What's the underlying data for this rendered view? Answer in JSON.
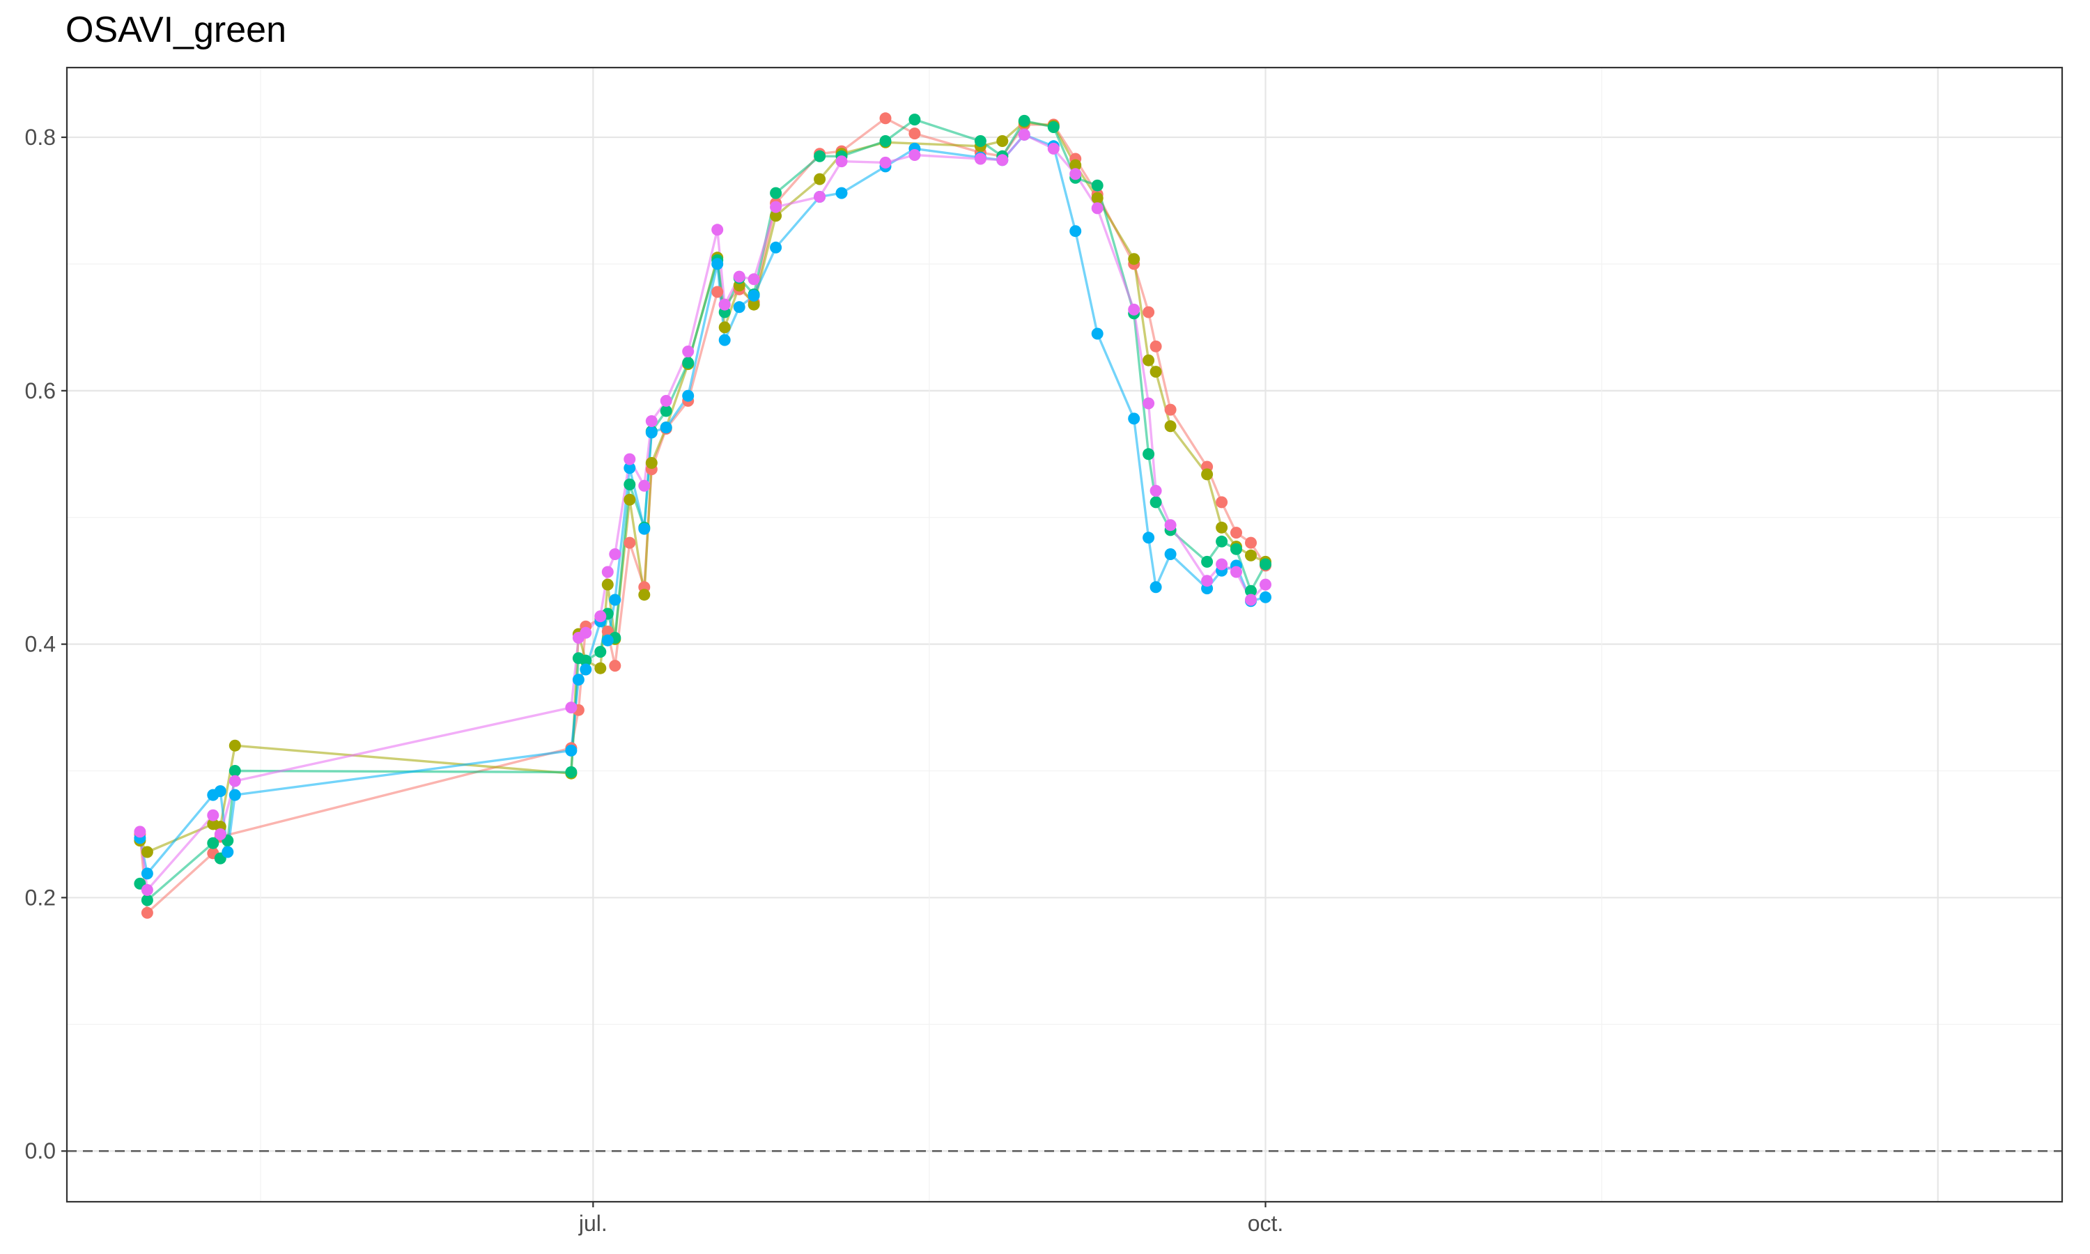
{
  "chart_data": {
    "type": "line",
    "title": "OSAVI_green",
    "xlabel": "",
    "ylabel": "",
    "x_tick_labels": [
      "jul.",
      "oct."
    ],
    "y_tick_labels": [
      "0.0",
      "0.2",
      "0.4",
      "0.6",
      "0.8"
    ],
    "ylim": [
      -0.04,
      0.855
    ],
    "xlim": [
      "2021-04-20",
      "2022-01-18"
    ],
    "grid": true,
    "reference_line": {
      "y": 0,
      "style": "dashed"
    },
    "legend": "none",
    "series": [
      {
        "color": "#F8766D",
        "points": [
          [
            "2021-04-30",
            0.25
          ],
          [
            "2021-05-01",
            0.188
          ],
          [
            "2021-05-10",
            0.235
          ],
          [
            "2021-05-11",
            0.248
          ],
          [
            "2021-06-28",
            0.318
          ],
          [
            "2021-06-29",
            0.348
          ],
          [
            "2021-06-30",
            0.414
          ],
          [
            "2021-07-02",
            0.42
          ],
          [
            "2021-07-03",
            0.41
          ],
          [
            "2021-07-04",
            0.383
          ],
          [
            "2021-07-06",
            0.48
          ],
          [
            "2021-07-08",
            0.445
          ],
          [
            "2021-07-09",
            0.538
          ],
          [
            "2021-07-11",
            0.57
          ],
          [
            "2021-07-14",
            0.592
          ],
          [
            "2021-07-18",
            0.678
          ],
          [
            "2021-07-19",
            0.668
          ],
          [
            "2021-07-21",
            0.68
          ],
          [
            "2021-07-23",
            0.67
          ],
          [
            "2021-07-26",
            0.748
          ],
          [
            "2021-08-01",
            0.787
          ],
          [
            "2021-08-04",
            0.789
          ],
          [
            "2021-08-10",
            0.815
          ],
          [
            "2021-08-14",
            0.803
          ],
          [
            "2021-08-23",
            0.788
          ],
          [
            "2021-08-26",
            0.785
          ],
          [
            "2021-08-29",
            0.81
          ],
          [
            "2021-09-02",
            0.81
          ],
          [
            "2021-09-05",
            0.783
          ],
          [
            "2021-09-08",
            0.755
          ],
          [
            "2021-09-13",
            0.7
          ],
          [
            "2021-09-15",
            0.662
          ],
          [
            "2021-09-16",
            0.635
          ],
          [
            "2021-09-18",
            0.585
          ],
          [
            "2021-09-23",
            0.54
          ],
          [
            "2021-09-25",
            0.512
          ],
          [
            "2021-09-27",
            0.488
          ],
          [
            "2021-09-29",
            0.48
          ],
          [
            "2021-10-01",
            0.462
          ]
        ]
      },
      {
        "color": "#A3A500",
        "points": [
          [
            "2021-04-30",
            0.245
          ],
          [
            "2021-05-01",
            0.236
          ],
          [
            "2021-05-10",
            0.258
          ],
          [
            "2021-05-11",
            0.256
          ],
          [
            "2021-05-13",
            0.32
          ],
          [
            "2021-06-28",
            0.298
          ],
          [
            "2021-06-29",
            0.408
          ],
          [
            "2021-06-30",
            0.387
          ],
          [
            "2021-07-02",
            0.381
          ],
          [
            "2021-07-03",
            0.447
          ],
          [
            "2021-07-04",
            0.404
          ],
          [
            "2021-07-06",
            0.514
          ],
          [
            "2021-07-08",
            0.439
          ],
          [
            "2021-07-09",
            0.543
          ],
          [
            "2021-07-11",
            0.571
          ],
          [
            "2021-07-14",
            0.621
          ],
          [
            "2021-07-18",
            0.705
          ],
          [
            "2021-07-19",
            0.65
          ],
          [
            "2021-07-21",
            0.683
          ],
          [
            "2021-07-23",
            0.668
          ],
          [
            "2021-07-26",
            0.738
          ],
          [
            "2021-08-01",
            0.767
          ],
          [
            "2021-08-04",
            0.787
          ],
          [
            "2021-08-10",
            0.796
          ],
          [
            "2021-08-23",
            0.793
          ],
          [
            "2021-08-26",
            0.797
          ],
          [
            "2021-08-29",
            0.812
          ],
          [
            "2021-09-02",
            0.809
          ],
          [
            "2021-09-05",
            0.778
          ],
          [
            "2021-09-08",
            0.752
          ],
          [
            "2021-09-13",
            0.704
          ],
          [
            "2021-09-15",
            0.624
          ],
          [
            "2021-09-16",
            0.615
          ],
          [
            "2021-09-18",
            0.572
          ],
          [
            "2021-09-23",
            0.534
          ],
          [
            "2021-09-25",
            0.492
          ],
          [
            "2021-09-27",
            0.477
          ],
          [
            "2021-09-29",
            0.47
          ],
          [
            "2021-10-01",
            0.465
          ]
        ]
      },
      {
        "color": "#00BF7D",
        "points": [
          [
            "2021-04-30",
            0.211
          ],
          [
            "2021-05-01",
            0.198
          ],
          [
            "2021-05-10",
            0.243
          ],
          [
            "2021-05-11",
            0.231
          ],
          [
            "2021-05-12",
            0.245
          ],
          [
            "2021-05-13",
            0.3
          ],
          [
            "2021-06-28",
            0.299
          ],
          [
            "2021-06-29",
            0.389
          ],
          [
            "2021-06-30",
            0.387
          ],
          [
            "2021-07-02",
            0.394
          ],
          [
            "2021-07-03",
            0.424
          ],
          [
            "2021-07-04",
            0.405
          ],
          [
            "2021-07-06",
            0.526
          ],
          [
            "2021-07-08",
            0.492
          ],
          [
            "2021-07-09",
            0.568
          ],
          [
            "2021-07-11",
            0.584
          ],
          [
            "2021-07-14",
            0.622
          ],
          [
            "2021-07-18",
            0.703
          ],
          [
            "2021-07-19",
            0.662
          ],
          [
            "2021-07-21",
            0.689
          ],
          [
            "2021-07-23",
            0.676
          ],
          [
            "2021-07-26",
            0.756
          ],
          [
            "2021-08-01",
            0.785
          ],
          [
            "2021-08-04",
            0.785
          ],
          [
            "2021-08-10",
            0.797
          ],
          [
            "2021-08-14",
            0.814
          ],
          [
            "2021-08-23",
            0.797
          ],
          [
            "2021-08-26",
            0.785
          ],
          [
            "2021-08-29",
            0.813
          ],
          [
            "2021-09-02",
            0.808
          ],
          [
            "2021-09-05",
            0.768
          ],
          [
            "2021-09-08",
            0.762
          ],
          [
            "2021-09-13",
            0.661
          ],
          [
            "2021-09-15",
            0.55
          ],
          [
            "2021-09-16",
            0.512
          ],
          [
            "2021-09-18",
            0.49
          ],
          [
            "2021-09-23",
            0.465
          ],
          [
            "2021-09-25",
            0.481
          ],
          [
            "2021-09-27",
            0.475
          ],
          [
            "2021-09-29",
            0.442
          ],
          [
            "2021-10-01",
            0.463
          ]
        ]
      },
      {
        "color": "#00B0F6",
        "points": [
          [
            "2021-04-30",
            0.247
          ],
          [
            "2021-05-01",
            0.219
          ],
          [
            "2021-05-10",
            0.281
          ],
          [
            "2021-05-11",
            0.284
          ],
          [
            "2021-05-12",
            0.236
          ],
          [
            "2021-05-13",
            0.281
          ],
          [
            "2021-06-28",
            0.316
          ],
          [
            "2021-06-29",
            0.372
          ],
          [
            "2021-06-30",
            0.38
          ],
          [
            "2021-07-02",
            0.418
          ],
          [
            "2021-07-03",
            0.403
          ],
          [
            "2021-07-04",
            0.435
          ],
          [
            "2021-07-06",
            0.539
          ],
          [
            "2021-07-08",
            0.491
          ],
          [
            "2021-07-09",
            0.567
          ],
          [
            "2021-07-11",
            0.571
          ],
          [
            "2021-07-14",
            0.596
          ],
          [
            "2021-07-18",
            0.7
          ],
          [
            "2021-07-19",
            0.64
          ],
          [
            "2021-07-21",
            0.666
          ],
          [
            "2021-07-23",
            0.675
          ],
          [
            "2021-07-26",
            0.713
          ],
          [
            "2021-08-01",
            0.753
          ],
          [
            "2021-08-04",
            0.756
          ],
          [
            "2021-08-10",
            0.777
          ],
          [
            "2021-08-14",
            0.791
          ],
          [
            "2021-08-23",
            0.784
          ],
          [
            "2021-08-26",
            0.782
          ],
          [
            "2021-08-29",
            0.802
          ],
          [
            "2021-09-02",
            0.793
          ],
          [
            "2021-09-05",
            0.726
          ],
          [
            "2021-09-08",
            0.645
          ],
          [
            "2021-09-13",
            0.578
          ],
          [
            "2021-09-15",
            0.484
          ],
          [
            "2021-09-16",
            0.445
          ],
          [
            "2021-09-18",
            0.471
          ],
          [
            "2021-09-23",
            0.444
          ],
          [
            "2021-09-25",
            0.458
          ],
          [
            "2021-09-27",
            0.462
          ],
          [
            "2021-09-29",
            0.434
          ],
          [
            "2021-10-01",
            0.437
          ]
        ]
      },
      {
        "color": "#E76BF3",
        "points": [
          [
            "2021-04-30",
            0.252
          ],
          [
            "2021-05-01",
            0.206
          ],
          [
            "2021-05-10",
            0.265
          ],
          [
            "2021-05-11",
            0.25
          ],
          [
            "2021-05-13",
            0.292
          ],
          [
            "2021-06-28",
            0.35
          ],
          [
            "2021-06-29",
            0.405
          ],
          [
            "2021-06-30",
            0.409
          ],
          [
            "2021-07-02",
            0.422
          ],
          [
            "2021-07-03",
            0.457
          ],
          [
            "2021-07-04",
            0.471
          ],
          [
            "2021-07-06",
            0.546
          ],
          [
            "2021-07-08",
            0.525
          ],
          [
            "2021-07-09",
            0.576
          ],
          [
            "2021-07-11",
            0.592
          ],
          [
            "2021-07-14",
            0.631
          ],
          [
            "2021-07-18",
            0.727
          ],
          [
            "2021-07-19",
            0.668
          ],
          [
            "2021-07-21",
            0.69
          ],
          [
            "2021-07-23",
            0.688
          ],
          [
            "2021-07-26",
            0.745
          ],
          [
            "2021-08-01",
            0.753
          ],
          [
            "2021-08-04",
            0.781
          ],
          [
            "2021-08-10",
            0.78
          ],
          [
            "2021-08-14",
            0.786
          ],
          [
            "2021-08-23",
            0.783
          ],
          [
            "2021-08-26",
            0.782
          ],
          [
            "2021-08-29",
            0.802
          ],
          [
            "2021-09-02",
            0.791
          ],
          [
            "2021-09-05",
            0.771
          ],
          [
            "2021-09-08",
            0.744
          ],
          [
            "2021-09-13",
            0.664
          ],
          [
            "2021-09-15",
            0.59
          ],
          [
            "2021-09-16",
            0.521
          ],
          [
            "2021-09-18",
            0.494
          ],
          [
            "2021-09-23",
            0.45
          ],
          [
            "2021-09-25",
            0.463
          ],
          [
            "2021-09-27",
            0.457
          ],
          [
            "2021-09-29",
            0.435
          ],
          [
            "2021-10-01",
            0.447
          ]
        ]
      }
    ]
  }
}
